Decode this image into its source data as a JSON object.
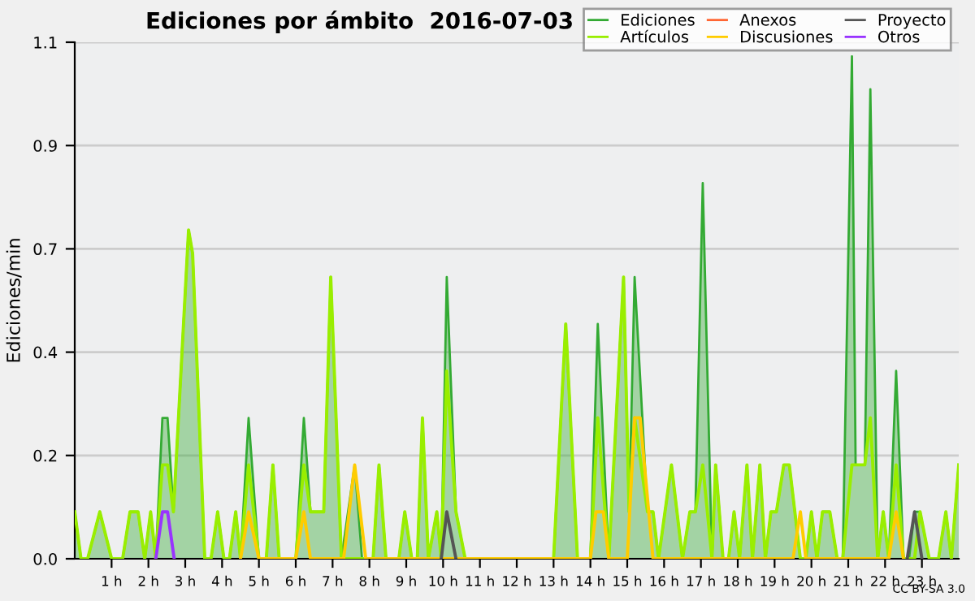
{
  "chart_data": {
    "type": "area",
    "title": "Ediciones por ámbito  2016-07-03",
    "ylabel": "Ediciones/min",
    "xlim": [
      0,
      24
    ],
    "xticks": [
      {
        "value": 1,
        "label": "1 h"
      },
      {
        "value": 2,
        "label": "2 h"
      },
      {
        "value": 3,
        "label": "3 h"
      },
      {
        "value": 4,
        "label": "4 h"
      },
      {
        "value": 5,
        "label": "5 h"
      },
      {
        "value": 6,
        "label": "6 h"
      },
      {
        "value": 7,
        "label": "7 h"
      },
      {
        "value": 8,
        "label": "8 h"
      },
      {
        "value": 9,
        "label": "9 h"
      },
      {
        "value": 10,
        "label": "10 h"
      },
      {
        "value": 11,
        "label": "11 h"
      },
      {
        "value": 12,
        "label": "12 h"
      },
      {
        "value": 13,
        "label": "13 h"
      },
      {
        "value": 14,
        "label": "14 h"
      },
      {
        "value": 15,
        "label": "15 h"
      },
      {
        "value": 16,
        "label": "16 h"
      },
      {
        "value": 17,
        "label": "17 h"
      },
      {
        "value": 18,
        "label": "18 h"
      },
      {
        "value": 19,
        "label": "19 h"
      },
      {
        "value": 20,
        "label": "20 h"
      },
      {
        "value": 21,
        "label": "21 h"
      },
      {
        "value": 22,
        "label": "22 h"
      },
      {
        "value": 23,
        "label": "23 h"
      }
    ],
    "ylim": [
      0,
      1.1
    ],
    "yticks": [
      {
        "value": 0,
        "label": "0.0"
      },
      {
        "value": 0.22,
        "label": "0.2"
      },
      {
        "value": 0.44,
        "label": "0.4"
      },
      {
        "value": 0.66,
        "label": "0.7"
      },
      {
        "value": 0.88,
        "label": "0.9"
      },
      {
        "value": 1.1,
        "label": "1.1"
      }
    ],
    "grid": "y",
    "legend": "top right",
    "annotations": [
      "CC BY-SA 3.0"
    ],
    "series": [
      {
        "name": "Ediciones",
        "type": "area",
        "color": "#33aa33",
        "x": [
          0,
          0.17,
          0.35,
          0.68,
          1.0,
          1.3,
          1.5,
          1.72,
          1.9,
          2.06,
          2.2,
          2.38,
          2.52,
          2.68,
          3.09,
          3.2,
          3.53,
          3.7,
          3.88,
          4.05,
          4.2,
          4.37,
          4.5,
          4.72,
          5.0,
          5.2,
          5.38,
          5.55,
          6.0,
          6.22,
          6.4,
          6.76,
          6.95,
          7.24,
          7.6,
          7.8,
          8.1,
          8.26,
          8.45,
          8.8,
          8.96,
          9.15,
          9.3,
          9.44,
          9.6,
          9.83,
          9.95,
          10.1,
          10.35,
          10.6,
          13.0,
          13.33,
          13.65,
          14.0,
          14.2,
          14.5,
          14.9,
          15.05,
          15.2,
          15.55,
          15.7,
          15.85,
          16.2,
          16.5,
          16.7,
          16.85,
          17.05,
          17.3,
          17.4,
          17.6,
          17.75,
          17.9,
          18.05,
          18.25,
          18.4,
          18.6,
          18.75,
          18.9,
          19.05,
          19.25,
          19.4,
          19.7,
          19.85,
          20.0,
          20.15,
          20.3,
          20.5,
          20.7,
          20.85,
          21.1,
          21.2,
          21.45,
          21.6,
          21.8,
          21.95,
          22.1,
          22.3,
          22.5,
          22.65,
          22.8,
          22.95,
          23.2,
          23.45,
          23.65,
          23.8,
          24
        ],
        "values": [
          0.1,
          0,
          0,
          0.1,
          0,
          0,
          0.1,
          0.1,
          0,
          0.1,
          0,
          0.3,
          0.3,
          0.1,
          0.7,
          0.65,
          0,
          0,
          0.1,
          0,
          0,
          0.1,
          0,
          0.3,
          0,
          0,
          0.2,
          0,
          0,
          0.3,
          0.1,
          0.1,
          0.6,
          0,
          0.2,
          0,
          0,
          0.2,
          0,
          0,
          0.1,
          0,
          0,
          0.3,
          0,
          0.1,
          0,
          0.6,
          0.1,
          0,
          0,
          0.5,
          0,
          0,
          0.5,
          0,
          0.6,
          0.1,
          0.6,
          0.1,
          0.1,
          0,
          0.2,
          0,
          0.1,
          0.1,
          0.8,
          0,
          0.2,
          0,
          0,
          0.1,
          0,
          0.2,
          0,
          0.2,
          0,
          0.1,
          0.1,
          0.2,
          0.2,
          0,
          0,
          0.1,
          0,
          0.1,
          0.1,
          0,
          0,
          1.07,
          0.2,
          0.2,
          1.0,
          0,
          0.1,
          0,
          0.4,
          0,
          0,
          0.1,
          0.1,
          0,
          0,
          0.1,
          0,
          0.2
        ]
      },
      {
        "name": "Artículos",
        "type": "line",
        "color": "#99ee00",
        "x": [
          0,
          0.17,
          0.35,
          0.68,
          1.0,
          1.3,
          1.5,
          1.72,
          1.9,
          2.06,
          2.2,
          2.38,
          2.52,
          2.68,
          3.09,
          3.2,
          3.53,
          3.7,
          3.88,
          4.05,
          4.2,
          4.37,
          4.5,
          4.72,
          5.0,
          5.2,
          5.38,
          5.55,
          6.0,
          6.22,
          6.4,
          6.76,
          6.95,
          7.24,
          7.6,
          7.8,
          8.1,
          8.26,
          8.45,
          8.8,
          8.96,
          9.15,
          9.3,
          9.44,
          9.6,
          9.83,
          9.95,
          10.1,
          10.35,
          10.6,
          13.0,
          13.33,
          13.65,
          14.0,
          14.2,
          14.5,
          14.9,
          15.05,
          15.2,
          15.55,
          15.7,
          15.85,
          16.2,
          16.5,
          16.7,
          16.85,
          17.05,
          17.3,
          17.4,
          17.6,
          17.75,
          17.9,
          18.05,
          18.25,
          18.4,
          18.6,
          18.75,
          18.9,
          19.05,
          19.25,
          19.4,
          19.7,
          19.85,
          20.0,
          20.15,
          20.3,
          20.5,
          20.7,
          20.85,
          21.1,
          21.2,
          21.45,
          21.6,
          21.8,
          21.95,
          22.1,
          22.3,
          22.5,
          22.65,
          22.8,
          22.95,
          23.2,
          23.45,
          23.65,
          23.8,
          24
        ],
        "values": [
          0.1,
          0,
          0,
          0.1,
          0,
          0,
          0.1,
          0.1,
          0,
          0.1,
          0,
          0.2,
          0.2,
          0.1,
          0.7,
          0.65,
          0,
          0,
          0.1,
          0,
          0,
          0.1,
          0,
          0.2,
          0,
          0,
          0.2,
          0,
          0,
          0.2,
          0.1,
          0.1,
          0.6,
          0,
          0,
          0,
          0,
          0.2,
          0,
          0,
          0.1,
          0,
          0,
          0.3,
          0,
          0.1,
          0,
          0.4,
          0.1,
          0,
          0,
          0.5,
          0,
          0,
          0.3,
          0,
          0.6,
          0.1,
          0.3,
          0.1,
          0.1,
          0,
          0.2,
          0,
          0.1,
          0.1,
          0.2,
          0,
          0.2,
          0,
          0,
          0.1,
          0,
          0.2,
          0,
          0.2,
          0,
          0.1,
          0.1,
          0.2,
          0.2,
          0,
          0,
          0.1,
          0,
          0.1,
          0.1,
          0,
          0,
          0.2,
          0.2,
          0.2,
          0.3,
          0,
          0.1,
          0,
          0.2,
          0,
          0,
          0,
          0.1,
          0,
          0,
          0.1,
          0,
          0.2
        ]
      },
      {
        "name": "Anexos",
        "type": "line",
        "color": "#ff6633"
      },
      {
        "name": "Discusiones",
        "type": "line",
        "color": "#ffcc00",
        "x": [
          4.5,
          4.72,
          5.0,
          6.0,
          6.22,
          6.4,
          7.3,
          7.6,
          7.9,
          14.0,
          14.15,
          14.35,
          14.5,
          15.0,
          15.2,
          15.35,
          15.7,
          19.5,
          19.7,
          19.85,
          22.1,
          22.3,
          22.5
        ],
        "values": [
          0,
          0.1,
          0,
          0,
          0.1,
          0,
          0,
          0.2,
          0,
          0,
          0.1,
          0.1,
          0,
          0,
          0.3,
          0.3,
          0,
          0,
          0.1,
          0,
          0,
          0.1,
          0
        ]
      },
      {
        "name": "Proyecto",
        "type": "line",
        "color": "#555555",
        "x": [
          9.95,
          10.1,
          10.35,
          10.5,
          22.6,
          22.8,
          23.0
        ],
        "values": [
          0,
          0.1,
          0,
          null,
          0,
          0.1,
          0
        ]
      },
      {
        "name": "Otros",
        "type": "line",
        "color": "#9933ff",
        "x": [
          2.2,
          2.38,
          2.52,
          2.7
        ],
        "values": [
          0,
          0.1,
          0.1,
          0
        ]
      }
    ]
  }
}
